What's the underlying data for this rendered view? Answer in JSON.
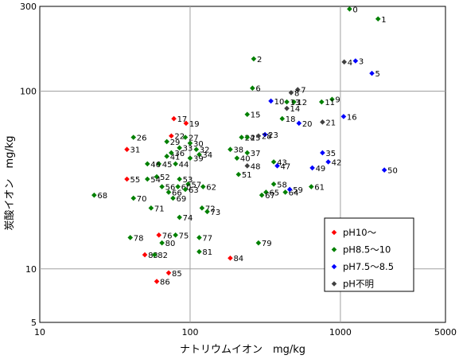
{
  "chart_data": {
    "type": "scatter",
    "xlabel": "ナトリウムイオン　mg/kg",
    "ylabel": "炭酸イオン　mg/kg",
    "x_scale": "log",
    "y_scale": "log",
    "xlim": [
      10,
      5000
    ],
    "ylim": [
      5,
      300
    ],
    "x_ticks": [
      10,
      100,
      1000,
      5000
    ],
    "y_ticks": [
      5,
      10,
      100,
      300
    ],
    "grid": true,
    "legend_position": "bottom-right",
    "series": [
      {
        "name": "pH10～",
        "color": "#ff0000",
        "points": [
          {
            "label": "17",
            "x": 78,
            "y": 70
          },
          {
            "label": "19",
            "x": 94,
            "y": 66
          },
          {
            "label": "22",
            "x": 75,
            "y": 56
          },
          {
            "label": "31",
            "x": 38,
            "y": 47
          },
          {
            "label": "55",
            "x": 38,
            "y": 32
          },
          {
            "label": "76",
            "x": 62,
            "y": 15.5
          },
          {
            "label": "83",
            "x": 50,
            "y": 12
          },
          {
            "label": "84",
            "x": 185,
            "y": 11.5
          },
          {
            "label": "85",
            "x": 72,
            "y": 9.5
          },
          {
            "label": "86",
            "x": 60,
            "y": 8.5
          }
        ]
      },
      {
        "name": "pH8.5～10",
        "color": "#008000",
        "points": [
          {
            "label": "0",
            "x": 1150,
            "y": 290
          },
          {
            "label": "1",
            "x": 1780,
            "y": 255
          },
          {
            "label": "2",
            "x": 265,
            "y": 152
          },
          {
            "label": "6",
            "x": 260,
            "y": 104
          },
          {
            "label": "9",
            "x": 880,
            "y": 90
          },
          {
            "label": "11",
            "x": 750,
            "y": 87
          },
          {
            "label": "12",
            "x": 490,
            "y": 87
          },
          {
            "label": "13",
            "x": 440,
            "y": 87
          },
          {
            "label": "15",
            "x": 240,
            "y": 74
          },
          {
            "label": "18",
            "x": 410,
            "y": 70
          },
          {
            "label": "24",
            "x": 220,
            "y": 55
          },
          {
            "label": "25",
            "x": 240,
            "y": 55
          },
          {
            "label": "26",
            "x": 42,
            "y": 55
          },
          {
            "label": "27",
            "x": 93,
            "y": 55
          },
          {
            "label": "29",
            "x": 70,
            "y": 52
          },
          {
            "label": "30",
            "x": 100,
            "y": 51
          },
          {
            "label": "32",
            "x": 110,
            "y": 47
          },
          {
            "label": "33",
            "x": 85,
            "y": 48
          },
          {
            "label": "34",
            "x": 115,
            "y": 44
          },
          {
            "label": "36",
            "x": 75,
            "y": 45
          },
          {
            "label": "37",
            "x": 240,
            "y": 45
          },
          {
            "label": "38",
            "x": 185,
            "y": 47
          },
          {
            "label": "39",
            "x": 100,
            "y": 42
          },
          {
            "label": "40",
            "x": 205,
            "y": 42
          },
          {
            "label": "41",
            "x": 70,
            "y": 43
          },
          {
            "label": "43",
            "x": 360,
            "y": 40
          },
          {
            "label": "44",
            "x": 80,
            "y": 39
          },
          {
            "label": "45",
            "x": 62,
            "y": 39
          },
          {
            "label": "46",
            "x": 52,
            "y": 39
          },
          {
            "label": "51",
            "x": 210,
            "y": 34
          },
          {
            "label": "52",
            "x": 60,
            "y": 33
          },
          {
            "label": "53",
            "x": 85,
            "y": 32
          },
          {
            "label": "54",
            "x": 52,
            "y": 32
          },
          {
            "label": "56",
            "x": 65,
            "y": 29
          },
          {
            "label": "57",
            "x": 97,
            "y": 30
          },
          {
            "label": "58",
            "x": 360,
            "y": 30
          },
          {
            "label": "60",
            "x": 83,
            "y": 29
          },
          {
            "label": "61",
            "x": 640,
            "y": 29
          },
          {
            "label": "62",
            "x": 122,
            "y": 29
          },
          {
            "label": "63",
            "x": 93,
            "y": 28
          },
          {
            "label": "64",
            "x": 430,
            "y": 27
          },
          {
            "label": "65",
            "x": 320,
            "y": 27
          },
          {
            "label": "66",
            "x": 72,
            "y": 27
          },
          {
            "label": "67",
            "x": 300,
            "y": 26
          },
          {
            "label": "68",
            "x": 23,
            "y": 26
          },
          {
            "label": "69",
            "x": 77,
            "y": 25
          },
          {
            "label": "70",
            "x": 42,
            "y": 25
          },
          {
            "label": "71",
            "x": 55,
            "y": 22
          },
          {
            "label": "72",
            "x": 120,
            "y": 22
          },
          {
            "label": "73",
            "x": 130,
            "y": 21
          },
          {
            "label": "74",
            "x": 85,
            "y": 19.5
          },
          {
            "label": "75",
            "x": 80,
            "y": 15.5
          },
          {
            "label": "77",
            "x": 115,
            "y": 15
          },
          {
            "label": "78",
            "x": 40,
            "y": 15
          },
          {
            "label": "79",
            "x": 285,
            "y": 14
          },
          {
            "label": "80",
            "x": 65,
            "y": 14
          },
          {
            "label": "81",
            "x": 115,
            "y": 12.5
          },
          {
            "label": "82",
            "x": 58,
            "y": 12
          }
        ]
      },
      {
        "name": "pH7.5～8.5",
        "color": "#0000ff",
        "points": [
          {
            "label": "3",
            "x": 1260,
            "y": 148
          },
          {
            "label": "5",
            "x": 1620,
            "y": 126
          },
          {
            "label": "10",
            "x": 345,
            "y": 88
          },
          {
            "label": "16",
            "x": 1050,
            "y": 72
          },
          {
            "label": "20",
            "x": 530,
            "y": 66
          },
          {
            "label": "23",
            "x": 315,
            "y": 57
          },
          {
            "label": "35",
            "x": 760,
            "y": 45
          },
          {
            "label": "42",
            "x": 830,
            "y": 40
          },
          {
            "label": "47",
            "x": 380,
            "y": 38
          },
          {
            "label": "49",
            "x": 650,
            "y": 37
          },
          {
            "label": "50",
            "x": 1960,
            "y": 36
          },
          {
            "label": "59",
            "x": 460,
            "y": 28
          }
        ]
      },
      {
        "name": "pH不明",
        "color": "#404040",
        "points": [
          {
            "label": "4",
            "x": 1060,
            "y": 146
          },
          {
            "label": "7",
            "x": 520,
            "y": 102
          },
          {
            "label": "8",
            "x": 470,
            "y": 98
          },
          {
            "label": "14",
            "x": 440,
            "y": 80
          },
          {
            "label": "21",
            "x": 760,
            "y": 67
          },
          {
            "label": "28",
            "x": 285,
            "y": 56
          },
          {
            "label": "48",
            "x": 240,
            "y": 38
          }
        ]
      }
    ]
  }
}
